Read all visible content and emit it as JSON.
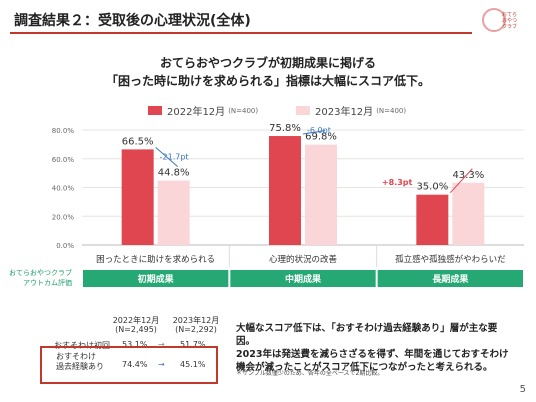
{
  "page": {
    "title": "調査結果２：受取後の心理状況(全体)",
    "logo_text": "おてら おやつ クラブ",
    "headline_1": "おてらおやつクラブが初期成果に掲げる",
    "headline_2": "「困った時に助けを求められる」指標は大幅にスコア低下。",
    "page_number": "5",
    "side_label_1": "おてらおやつクラブ",
    "side_label_2": "アウトカム評価"
  },
  "legend": {
    "s1_label": "2022年12月",
    "s1_note": "(N=400)",
    "s2_label": "2023年12月",
    "s2_note": "(N=400)"
  },
  "chart_data": {
    "type": "bar",
    "categories": [
      "困ったときに助けを求められる",
      "心理的状況の改善",
      "孤立感や孤独感がやわらいだ"
    ],
    "outcome_groups": [
      "初期成果",
      "中期成果",
      "長期成果"
    ],
    "series": [
      {
        "name": "2022年12月",
        "values": [
          66.5,
          75.8,
          35.0
        ],
        "color": "#e0464f"
      },
      {
        "name": "2023年12月",
        "values": [
          44.8,
          69.8,
          43.3
        ],
        "color": "#fbd6d8"
      }
    ],
    "data_labels": [
      [
        "66.5%",
        "75.8%",
        "35.0%"
      ],
      [
        "44.8%",
        "69.8%",
        "43.3%"
      ]
    ],
    "change_labels": [
      "-21.7pt",
      "-6.0pt",
      "+8.3pt"
    ],
    "change_colors": [
      "#3a78c2",
      "#3a78c2",
      "#e0464f"
    ],
    "yticks": [
      "0.0%",
      "20.0%",
      "40.0%",
      "60.0%",
      "80.0%"
    ],
    "ylim": [
      0,
      80
    ],
    "grid": true,
    "legend_position": "top"
  },
  "table": {
    "col1": "2022年12月",
    "col1_n": "(N=2,495)",
    "col2": "2023年12月",
    "col2_n": "(N=2,292)",
    "rows": [
      {
        "label": "おすそわけ初回",
        "v1": "53.1%",
        "v2": "51.7%"
      },
      {
        "label": "おすそわけ 過去経験あり",
        "v1": "74.4%",
        "v2": "45.1%"
      }
    ]
  },
  "note": {
    "line1": "大幅なスコア低下は、「おすそわけ過去経験あり」層が主な要因。",
    "line2": "2023年は発送費を減らさざるを得ず、年間を通じておすそわけ",
    "line3": "機会が減ったことがスコア低下につながったと考えられる。",
    "footnote": "＊サンプル数僅少のため、各年の全ベースで2期比較。"
  }
}
